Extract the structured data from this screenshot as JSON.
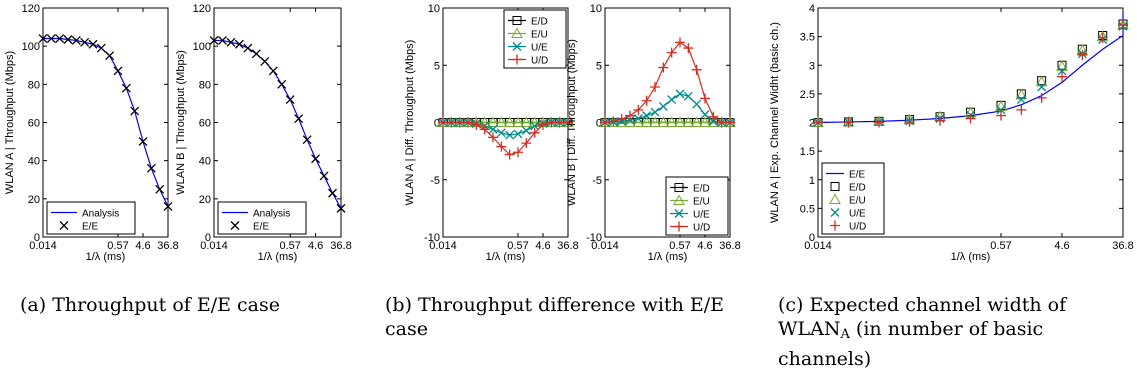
{
  "chart_data": [
    {
      "type": "line",
      "xlabel": "1/λ (ms)",
      "ylabel": "WLAN A | Throughput (Mbps)",
      "xticks": [
        "0.014",
        "0.57",
        "4.6",
        "36.8"
      ],
      "xtick_pos": [
        0,
        9,
        12,
        15
      ],
      "xlim": [
        0,
        15
      ],
      "ylim": [
        0,
        120
      ],
      "yticks": [
        0,
        20,
        40,
        60,
        80,
        100,
        120
      ],
      "legend": "bottom-left",
      "x": [
        0,
        1,
        2,
        3,
        4,
        5,
        6,
        7,
        8,
        9,
        10,
        11,
        12,
        13,
        14,
        15
      ],
      "series": [
        {
          "name": "Analysis",
          "style": "line",
          "color": "#0000ff",
          "values": [
            104,
            104,
            104,
            103.5,
            103,
            102,
            101,
            99,
            95,
            87,
            78,
            66,
            50,
            36,
            25,
            16
          ]
        },
        {
          "name": "E/E",
          "style": "x",
          "color": "#000000",
          "x": [
            0,
            1,
            2,
            3,
            4,
            5,
            6,
            7,
            8,
            9,
            10,
            11,
            12,
            13,
            14,
            15
          ],
          "values": [
            104,
            104,
            104,
            103.5,
            103,
            102,
            101,
            99,
            95,
            87,
            78,
            66,
            50,
            36,
            25,
            16
          ]
        }
      ]
    },
    {
      "type": "line",
      "xlabel": "1/λ (ms)",
      "ylabel": "WLAN B | Throughput (Mbps)",
      "xticks": [
        "0.014",
        "0.57",
        "4.6",
        "36.8"
      ],
      "xtick_pos": [
        0,
        9,
        12,
        15
      ],
      "xlim": [
        0,
        15
      ],
      "ylim": [
        0,
        120
      ],
      "yticks": [
        0,
        20,
        40,
        60,
        80,
        100,
        120
      ],
      "legend": "bottom-left",
      "x": [
        0,
        1,
        2,
        3,
        4,
        5,
        6,
        7,
        8,
        9,
        10,
        11,
        12,
        13,
        14,
        15
      ],
      "series": [
        {
          "name": "Analysis",
          "style": "line",
          "color": "#0000ff",
          "values": [
            103,
            103,
            102,
            101,
            99,
            96,
            92,
            87,
            80,
            72,
            62,
            51,
            41,
            32,
            23,
            15
          ]
        },
        {
          "name": "E/E",
          "style": "x",
          "color": "#000000",
          "x": [
            0,
            1,
            2,
            3,
            4,
            5,
            6,
            7,
            8,
            9,
            10,
            11,
            12,
            13,
            14,
            15
          ],
          "values": [
            103,
            103,
            102,
            101,
            99,
            96,
            92,
            87,
            80,
            72,
            62,
            51,
            41,
            32,
            23,
            15
          ]
        }
      ]
    },
    {
      "type": "line",
      "xlabel": "1/λ (ms)",
      "ylabel": "WLAN A | Diff. Throughput (Mbps)",
      "xticks": [
        "0.014",
        "0.57",
        "4.6",
        "36.8"
      ],
      "xtick_pos": [
        0,
        9,
        12,
        15
      ],
      "xlim": [
        0,
        15
      ],
      "ylim": [
        -10,
        10
      ],
      "yticks": [
        -10,
        -5,
        0,
        5,
        10
      ],
      "legend": "top-right",
      "x": [
        0,
        1,
        2,
        3,
        4,
        5,
        6,
        7,
        8,
        9,
        10,
        11,
        12,
        13,
        14,
        15
      ],
      "series": [
        {
          "name": "E/D",
          "style": "square",
          "color": "#000000",
          "values": [
            0,
            0,
            0,
            0,
            0,
            0,
            0,
            0,
            0,
            0,
            0,
            0,
            0,
            0,
            0,
            0
          ]
        },
        {
          "name": "E/U",
          "style": "triangle",
          "color": "#77ac30",
          "values": [
            0,
            0,
            0,
            0,
            0,
            0,
            0,
            0,
            0,
            0,
            0,
            0,
            0,
            0,
            0,
            0
          ]
        },
        {
          "name": "U/E",
          "style": "x",
          "color": "#008b8b",
          "values": [
            0,
            0,
            0,
            0,
            -0.1,
            -0.3,
            -0.6,
            -0.9,
            -1.1,
            -1.0,
            -0.7,
            -0.3,
            -0.1,
            0,
            0,
            0
          ]
        },
        {
          "name": "U/D",
          "style": "plus",
          "color": "#d62b1e",
          "values": [
            0,
            0,
            0,
            0,
            -0.2,
            -0.6,
            -1.3,
            -2.1,
            -2.8,
            -2.6,
            -1.8,
            -0.9,
            -0.2,
            0,
            0,
            0
          ]
        }
      ]
    },
    {
      "type": "line",
      "xlabel": "1/λ (ms)",
      "ylabel": "WLAN B | Diff. Throughput (Mbps)",
      "xticks": [
        "0.014",
        "0.57",
        "4.6",
        "36.8"
      ],
      "xtick_pos": [
        0,
        9,
        12,
        15
      ],
      "xlim": [
        0,
        15
      ],
      "ylim": [
        -10,
        10
      ],
      "yticks": [
        -10,
        -5,
        0,
        5,
        10
      ],
      "legend": "bottom-right",
      "x": [
        0,
        1,
        2,
        3,
        4,
        5,
        6,
        7,
        8,
        9,
        10,
        11,
        12,
        13,
        14,
        15
      ],
      "series": [
        {
          "name": "E/D",
          "style": "square",
          "color": "#000000",
          "values": [
            0,
            0,
            0,
            0,
            0,
            0,
            0,
            0,
            0,
            0,
            0,
            0,
            0,
            0,
            0,
            0
          ]
        },
        {
          "name": "E/U",
          "style": "triangle",
          "color": "#77ac30",
          "values": [
            0,
            0,
            0,
            0,
            0,
            0,
            0,
            0,
            0,
            0,
            0,
            0,
            0,
            0,
            0,
            0
          ]
        },
        {
          "name": "U/E",
          "style": "x",
          "color": "#008b8b",
          "values": [
            0,
            0.05,
            0.1,
            0.2,
            0.35,
            0.6,
            0.9,
            1.4,
            2.0,
            2.5,
            2.3,
            1.6,
            0.7,
            0.1,
            0,
            0
          ]
        },
        {
          "name": "U/D",
          "style": "plus",
          "color": "#d62b1e",
          "values": [
            0,
            0.1,
            0.3,
            0.6,
            1.1,
            1.9,
            3.1,
            4.8,
            6.1,
            7.0,
            6.5,
            4.6,
            2.1,
            0.5,
            0,
            0
          ]
        }
      ]
    },
    {
      "type": "line",
      "xlabel": "1/λ (ms)",
      "ylabel": "WLAN A | Exp. Channel Widht (basic ch.)",
      "xticks": [
        "0.014",
        "0.57",
        "4.6",
        "36.8"
      ],
      "xtick_pos": [
        0,
        9,
        12,
        15
      ],
      "xlim": [
        0,
        15
      ],
      "ylim": [
        0,
        4
      ],
      "yticks": [
        0,
        0.5,
        1,
        1.5,
        2,
        2.5,
        3,
        3.5,
        4
      ],
      "legend": "bottom-left",
      "x": [
        0,
        1,
        2,
        3,
        4,
        5,
        6,
        7,
        8,
        9,
        10,
        11,
        12,
        13,
        14,
        15
      ],
      "series": [
        {
          "name": "E/E",
          "style": "line",
          "color": "#0000ff",
          "values": [
            2.0,
            2.01,
            2.02,
            2.04,
            2.07,
            2.12,
            2.2,
            2.31,
            2.47,
            2.7,
            3.0,
            3.28,
            3.52,
            3.72,
            3.83,
            3.9
          ],
          "x": [
            0,
            1.5,
            3,
            4.5,
            6,
            7.5,
            9,
            10,
            11,
            12,
            13,
            14,
            15,
            15,
            15,
            15
          ]
        },
        {
          "name": "E/D",
          "style": "square",
          "color": "#000000",
          "x": [
            0,
            1.5,
            3,
            4.5,
            6,
            7.5,
            9,
            10,
            11,
            12,
            13,
            14,
            15
          ],
          "values": [
            2.0,
            2.01,
            2.02,
            2.05,
            2.1,
            2.18,
            2.3,
            2.5,
            2.73,
            3.0,
            3.28,
            3.52,
            3.72
          ]
        },
        {
          "name": "E/U",
          "style": "triangle",
          "color": "#77ac30",
          "x": [
            0,
            1.5,
            3,
            4.5,
            6,
            7.5,
            9,
            10,
            11,
            12,
            13,
            14,
            15
          ],
          "values": [
            2.0,
            2.01,
            2.02,
            2.05,
            2.1,
            2.17,
            2.28,
            2.48,
            2.71,
            2.98,
            3.26,
            3.5,
            3.7
          ]
        },
        {
          "name": "U/E",
          "style": "x",
          "color": "#008b8b",
          "x": [
            0,
            1.5,
            3,
            4.5,
            6,
            7.5,
            9,
            10,
            11,
            12,
            13,
            14,
            15
          ],
          "values": [
            2.0,
            2.0,
            2.01,
            2.03,
            2.07,
            2.13,
            2.22,
            2.4,
            2.62,
            2.9,
            3.2,
            3.45,
            3.68
          ]
        },
        {
          "name": "U/D",
          "style": "plus",
          "color": "#d62b1e",
          "x": [
            0,
            1.5,
            3,
            4.5,
            6,
            7.5,
            9,
            10,
            11,
            12,
            13,
            14,
            15
          ],
          "values": [
            2.0,
            2.0,
            2.0,
            2.01,
            2.03,
            2.07,
            2.12,
            2.22,
            2.43,
            2.8,
            3.18,
            3.48,
            3.7
          ]
        }
      ]
    }
  ],
  "captions": {
    "a": "(a) Throughput of E/E case",
    "b": "(b) Throughput difference with E/E case",
    "c_pre": "(c) Expected channel width of WLAN",
    "c_sub": "A",
    "c_post": " (in number of basic channels)"
  }
}
